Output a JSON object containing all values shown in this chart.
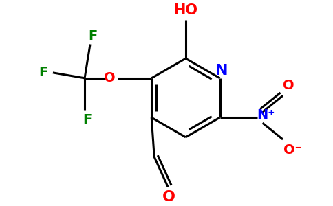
{
  "background_color": "#ffffff",
  "black": "#000000",
  "blue": "#0000ff",
  "red": "#ff0000",
  "green": "#008000",
  "figsize": [
    4.84,
    3.0
  ],
  "dpi": 100,
  "xlim": [
    -2.6,
    2.6
  ],
  "ylim": [
    -1.8,
    1.8
  ],
  "bond_lw": 2.2,
  "font_size_labels": 15,
  "font_size_N": 16
}
